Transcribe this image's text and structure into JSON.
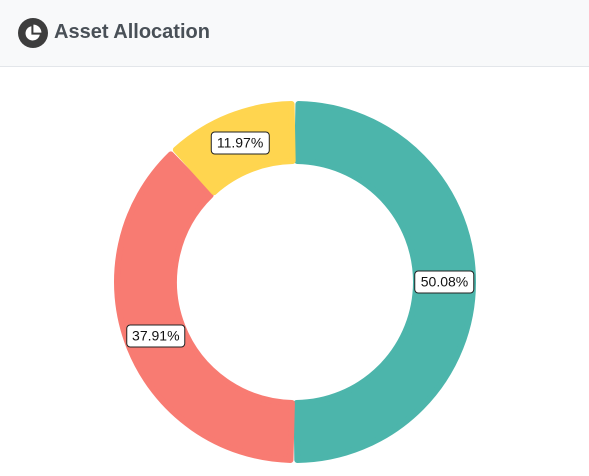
{
  "header": {
    "title": "Asset Allocation",
    "icon": "pie-chart-icon"
  },
  "chart_data": {
    "type": "pie",
    "donut": true,
    "title": "Asset Allocation",
    "legend": "none",
    "slices": [
      {
        "label": "50.08%",
        "value": 50.08,
        "color": "#4cb5ab"
      },
      {
        "label": "37.91%",
        "value": 37.91,
        "color": "#f87b72"
      },
      {
        "label": "11.97%",
        "value": 11.97,
        "color": "#ffd54f"
      }
    ]
  },
  "colors": {
    "header_bg": "#f8f9fa",
    "header_text": "#495057",
    "icon": "#3d3d3d"
  }
}
